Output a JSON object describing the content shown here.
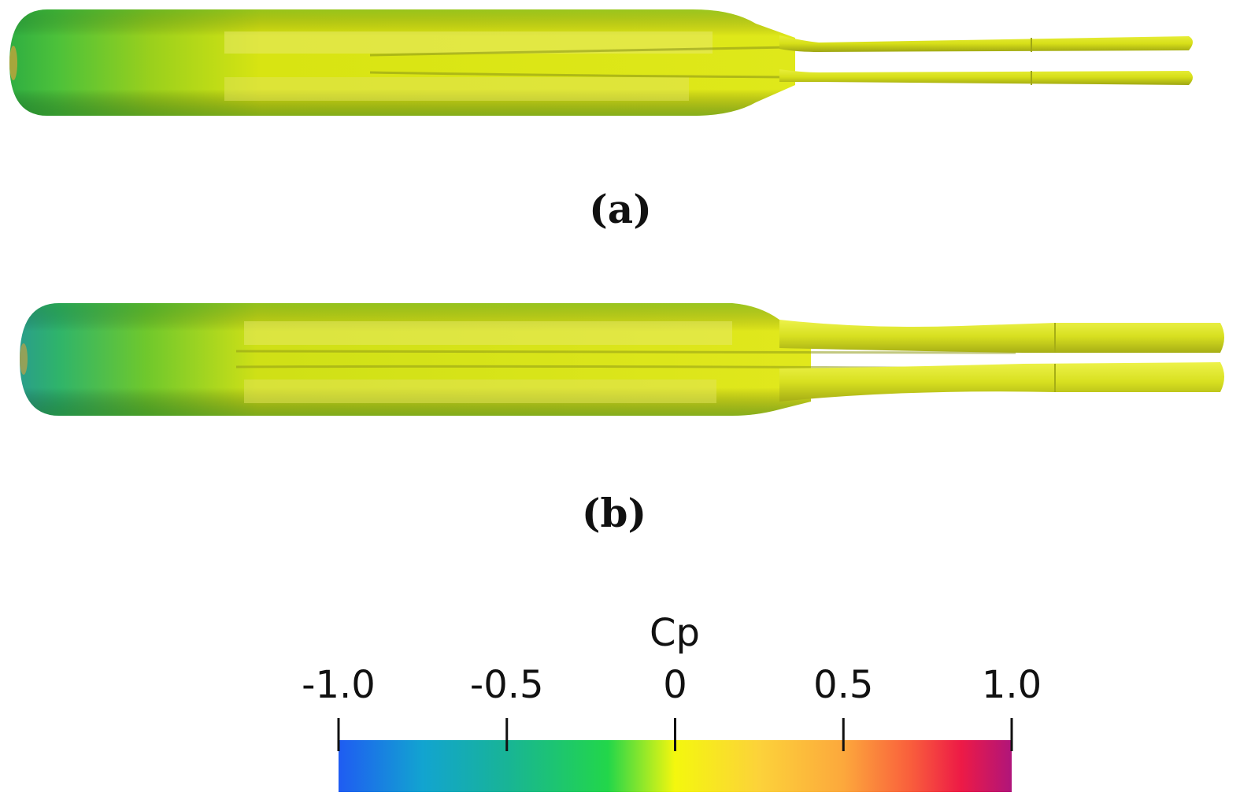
{
  "figure": {
    "panels": [
      {
        "id": "a",
        "label": "(a)"
      },
      {
        "id": "b",
        "label": "(b)"
      }
    ]
  },
  "colorbar": {
    "title": "Cp",
    "ticks": [
      "-1.0",
      "-0.5",
      "0",
      "0.5",
      "1.0"
    ],
    "tick_values": [
      -1.0,
      -0.5,
      0,
      0.5,
      1.0
    ],
    "range": [
      -1.0,
      1.0
    ],
    "colormap_stops": [
      {
        "value": -1.0,
        "color": "#1f5cf2"
      },
      {
        "value": -0.75,
        "color": "#12a4d0"
      },
      {
        "value": -0.5,
        "color": "#18b496"
      },
      {
        "value": -0.2,
        "color": "#22d64a"
      },
      {
        "value": 0.0,
        "color": "#f4f70e"
      },
      {
        "value": 0.25,
        "color": "#fcd23a"
      },
      {
        "value": 0.5,
        "color": "#fca83c"
      },
      {
        "value": 0.7,
        "color": "#f95e3c"
      },
      {
        "value": 0.85,
        "color": "#ed1a46"
      },
      {
        "value": 1.0,
        "color": "#b0157a"
      }
    ]
  }
}
